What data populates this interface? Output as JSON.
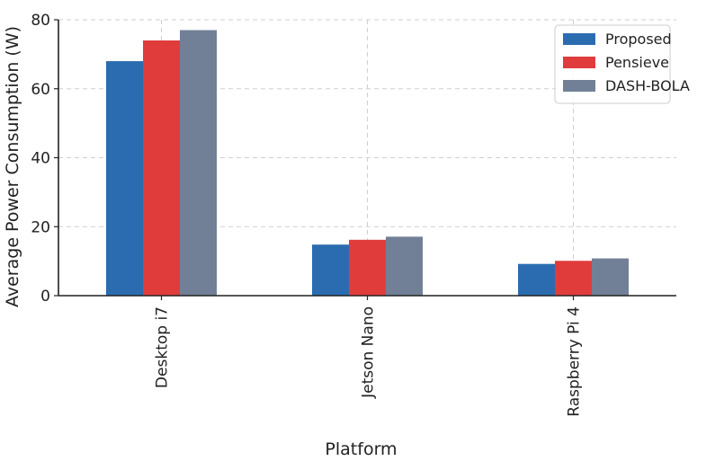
{
  "chart_data": {
    "type": "bar",
    "title": "",
    "xlabel": "Platform",
    "ylabel": "Average Power Consumption (W)",
    "categories": [
      "Desktop i7",
      "Jetson Nano",
      "Raspberry Pi 4"
    ],
    "ylim": [
      0,
      80
    ],
    "yticks": [
      0,
      20,
      40,
      60,
      80
    ],
    "grid": true,
    "legend_position": "top-right",
    "series": [
      {
        "name": "Proposed",
        "color": "#2b6cb0",
        "values": [
          68,
          14.8,
          9.2
        ]
      },
      {
        "name": "Pensieve",
        "color": "#e03c3c",
        "values": [
          74,
          16.2,
          10.1
        ]
      },
      {
        "name": "DASH-BOLA",
        "color": "#718096",
        "values": [
          77,
          17.1,
          10.8
        ]
      }
    ]
  }
}
